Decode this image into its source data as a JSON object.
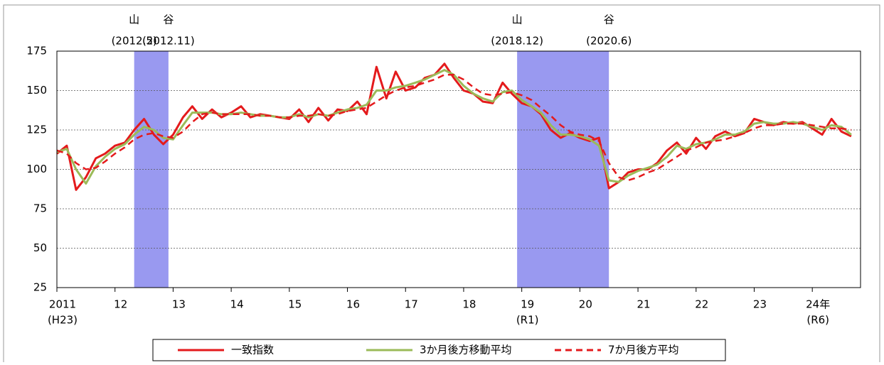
{
  "chart_data": {
    "type": "line",
    "x": [
      2011,
      2011.17,
      2011.33,
      2011.5,
      2011.67,
      2011.83,
      2012,
      2012.17,
      2012.33,
      2012.5,
      2012.67,
      2012.83,
      2013,
      2013.17,
      2013.33,
      2013.5,
      2013.67,
      2013.83,
      2014,
      2014.17,
      2014.33,
      2014.5,
      2014.67,
      2014.83,
      2015,
      2015.17,
      2015.33,
      2015.5,
      2015.67,
      2015.83,
      2016,
      2016.17,
      2016.33,
      2016.5,
      2016.67,
      2016.83,
      2017,
      2017.17,
      2017.33,
      2017.5,
      2017.67,
      2017.83,
      2018,
      2018.17,
      2018.33,
      2018.5,
      2018.67,
      2018.83,
      2019,
      2019.17,
      2019.33,
      2019.5,
      2019.67,
      2019.83,
      2020,
      2020.17,
      2020.33,
      2020.5,
      2020.67,
      2020.83,
      2021,
      2021.17,
      2021.33,
      2021.5,
      2021.67,
      2021.83,
      2022,
      2022.17,
      2022.33,
      2022.5,
      2022.67,
      2022.83,
      2023,
      2023.17,
      2023.33,
      2023.5,
      2023.67,
      2023.83,
      2024,
      2024.17,
      2024.33,
      2024.5,
      2024.67
    ],
    "series": [
      {
        "name": "一致指数",
        "color": "#e41a1c",
        "dash": false,
        "values": [
          110,
          115,
          87,
          95,
          107,
          110,
          115,
          117,
          125,
          132,
          122,
          116,
          122,
          133,
          140,
          132,
          138,
          133,
          136,
          140,
          133,
          135,
          134,
          133,
          132,
          138,
          130,
          139,
          131,
          138,
          137,
          143,
          135,
          165,
          145,
          162,
          150,
          152,
          158,
          160,
          167,
          158,
          150,
          148,
          143,
          142,
          155,
          148,
          142,
          140,
          135,
          125,
          120,
          123,
          120,
          118,
          120,
          88,
          92,
          98,
          100,
          100,
          104,
          112,
          117,
          110,
          120,
          113,
          121,
          124,
          121,
          123,
          132,
          130,
          128,
          130,
          129,
          130,
          126,
          122,
          132,
          124,
          121
        ]
      },
      {
        "name": "3か月後方移動平均",
        "color": "#9bbb59",
        "dash": false,
        "values": [
          111,
          113,
          100,
          91,
          102,
          108,
          113,
          116,
          122,
          127,
          125,
          120,
          119,
          128,
          136,
          136,
          136,
          135,
          135,
          136,
          135,
          134,
          134,
          133,
          133,
          135,
          133,
          135,
          134,
          136,
          138,
          139,
          141,
          150,
          150,
          152,
          153,
          155,
          157,
          160,
          163,
          160,
          153,
          148,
          145,
          143,
          149,
          150,
          144,
          140,
          136,
          128,
          122,
          122,
          121,
          119,
          115,
          93,
          92,
          96,
          99,
          101,
          103,
          108,
          115,
          113,
          116,
          117,
          119,
          122,
          122,
          124,
          129,
          130,
          129,
          129,
          130,
          129,
          127,
          125,
          128,
          127,
          122
        ]
      },
      {
        "name": "7か月後方平均",
        "color": "#e41a1c",
        "dash": true,
        "values": [
          112,
          110,
          104,
          100,
          101,
          105,
          110,
          114,
          119,
          122,
          123,
          121,
          120,
          124,
          130,
          135,
          136,
          135,
          135,
          135,
          135,
          134,
          134,
          133,
          133,
          134,
          134,
          135,
          134,
          135,
          137,
          138,
          139,
          143,
          147,
          150,
          152,
          153,
          155,
          157,
          160,
          160,
          157,
          152,
          148,
          147,
          148,
          149,
          147,
          144,
          139,
          134,
          128,
          124,
          122,
          121,
          118,
          104,
          95,
          93,
          95,
          98,
          100,
          104,
          108,
          112,
          114,
          117,
          118,
          119,
          121,
          123,
          126,
          128,
          128,
          129,
          129,
          129,
          128,
          127,
          126,
          126,
          125
        ]
      }
    ],
    "xlim": [
      2011,
      2024.83
    ],
    "xticks": [
      {
        "value": 2011,
        "label": "2011",
        "sub": "(H23)"
      },
      {
        "value": 2012,
        "label": "12"
      },
      {
        "value": 2013,
        "label": "13"
      },
      {
        "value": 2014,
        "label": "14"
      },
      {
        "value": 2015,
        "label": "15"
      },
      {
        "value": 2016,
        "label": "16"
      },
      {
        "value": 2017,
        "label": "17"
      },
      {
        "value": 2018,
        "label": "18"
      },
      {
        "value": 2019,
        "label": "19",
        "sub": "(R1)"
      },
      {
        "value": 2020,
        "label": "20"
      },
      {
        "value": 2021,
        "label": "21"
      },
      {
        "value": 2022,
        "label": "22"
      },
      {
        "value": 2023,
        "label": "23"
      },
      {
        "value": 2024,
        "label": "24年",
        "sub": "(R6)"
      }
    ],
    "ylim": [
      25,
      175
    ],
    "yticks": [
      25,
      50,
      75,
      100,
      125,
      150,
      175
    ],
    "grid": true,
    "shading": [
      {
        "start": 2012.33,
        "end": 2012.92,
        "color": "#9999f0",
        "peak": "山",
        "trough": "谷",
        "peak_date": "(2012.5)",
        "trough_date": "(2012.11)"
      },
      {
        "start": 2018.92,
        "end": 2020.5,
        "color": "#9999f0",
        "peak": "山",
        "trough": "谷",
        "peak_date": "(2018.12)",
        "trough_date": "(2020.6)"
      }
    ],
    "legend": "bottom"
  }
}
